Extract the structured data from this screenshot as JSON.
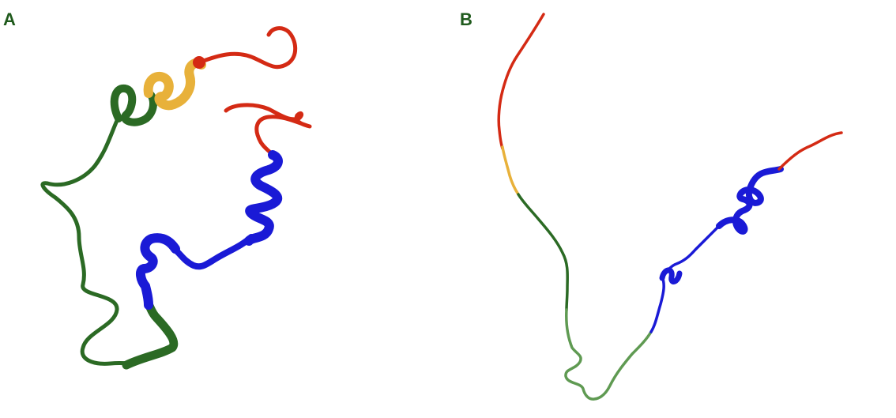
{
  "panels": [
    {
      "label": "A"
    },
    {
      "label": "B"
    }
  ],
  "colors": {
    "label": "#1f5a1c",
    "red_segment": "#d42a14",
    "orange_segment": "#e8b13a",
    "green_segment": "#2b6a24",
    "light_green_segment": "#5f9a52",
    "blue_segment": "#1a1ad6",
    "background": "#ffffff"
  }
}
